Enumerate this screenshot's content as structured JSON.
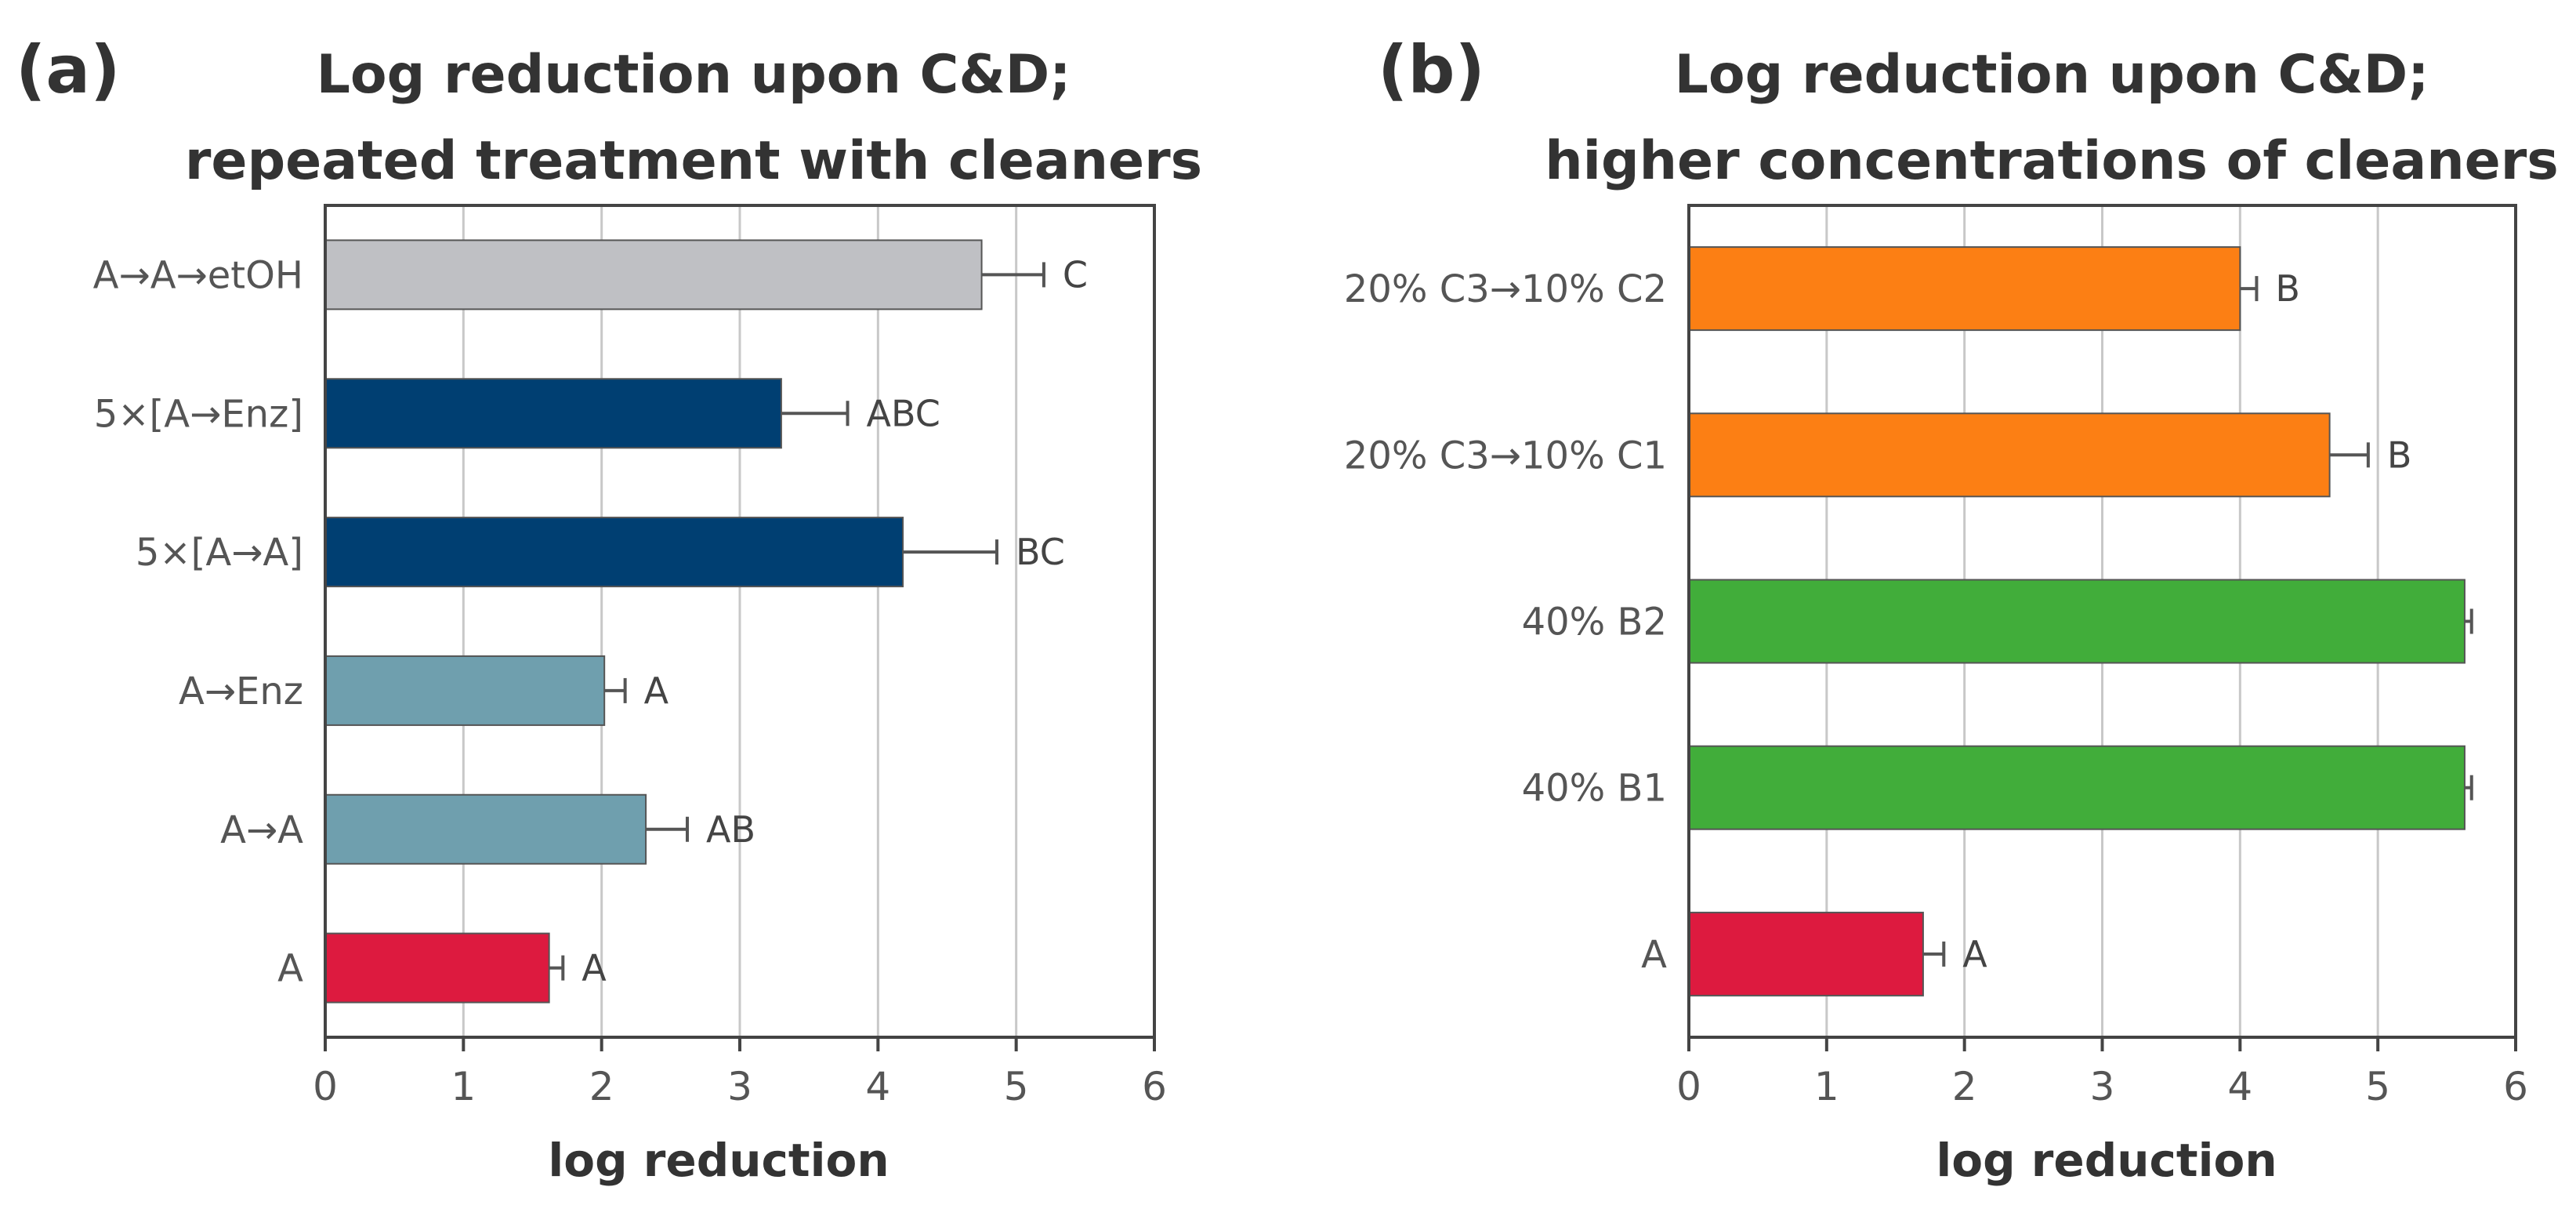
{
  "chart_data": [
    {
      "type": "bar",
      "orientation": "horizontal",
      "panel_label": "(a)",
      "title_lines": [
        "Log reduction upon C&D;",
        "repeated treatment with cleaners"
      ],
      "xlabel": "log reduction",
      "xlim": [
        0,
        6
      ],
      "xticks": [
        "0",
        "1",
        "2",
        "3",
        "4",
        "5",
        "6"
      ],
      "grid": true,
      "categories": [
        "A→A→etOH",
        "5×[A→Enz]",
        "5×[A→A]",
        "A→Enz",
        "A→A",
        "A"
      ],
      "values": [
        4.75,
        3.3,
        4.18,
        2.02,
        2.32,
        1.62
      ],
      "errors": [
        0.45,
        0.48,
        0.68,
        0.15,
        0.3,
        0.1
      ],
      "significance": [
        "C",
        "ABC",
        "BC",
        "A",
        "AB",
        "A"
      ],
      "colors": [
        "#bfc0c4",
        "#003f72",
        "#003f72",
        "#6f9fae",
        "#6f9fae",
        "#dd1a3f"
      ]
    },
    {
      "type": "bar",
      "orientation": "horizontal",
      "panel_label": "(b)",
      "title_lines": [
        "Log reduction upon C&D;",
        "higher concentrations of cleaners"
      ],
      "xlabel": "log reduction",
      "xlim": [
        0,
        6
      ],
      "xticks": [
        "0",
        "1",
        "2",
        "3",
        "4",
        "5",
        "6"
      ],
      "grid": true,
      "categories": [
        "20% C3→10% C2",
        "20% C3→10% C1",
        "40% B2",
        "40% B1",
        "A"
      ],
      "values": [
        4.0,
        4.65,
        5.63,
        5.63,
        1.7
      ],
      "errors": [
        0.12,
        0.28,
        0.05,
        0.05,
        0.15
      ],
      "significance": [
        "B",
        "B",
        "",
        "",
        "A"
      ],
      "colors": [
        "#fc7f14",
        "#fc7f14",
        "#41ad3a",
        "#41ad3a",
        "#dd1a3f"
      ]
    }
  ]
}
